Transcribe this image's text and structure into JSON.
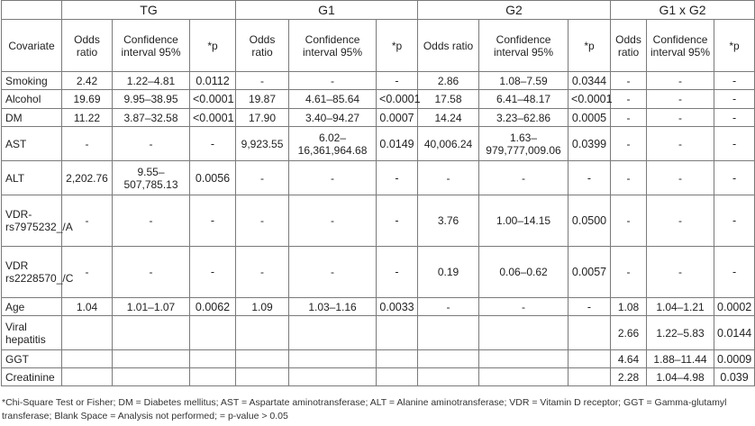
{
  "header": {
    "groups": [
      "TG",
      "G1",
      "G2",
      "G1 x G2"
    ],
    "covariate": "Covariate",
    "odds": "Odds ratio",
    "ci": "Confidence interval 95%",
    "p": "*p"
  },
  "rows": [
    {
      "name": "Smoking",
      "h": 20,
      "cells": [
        "2.42",
        "1.22–4.81",
        "0.0112",
        "-",
        "-",
        "-",
        "2.86",
        "1.08–7.59",
        "0.0344",
        "-",
        "-",
        "-"
      ]
    },
    {
      "name": "Alcohol",
      "h": 21,
      "cells": [
        "19.69",
        "9.95–38.95",
        "<0.0001",
        "19.87",
        "4.61–85.64",
        "<0.0001",
        "17.58",
        "6.41–48.17",
        "<0.0001",
        "-",
        "-",
        "-"
      ]
    },
    {
      "name": "DM",
      "h": 20,
      "cells": [
        "11.22",
        "3.87–32.58",
        "<0.0001",
        "17.90",
        "3.40–94.27",
        "0.0007",
        "14.24",
        "3.23–62.86",
        "0.0005",
        "-",
        "-",
        "-"
      ]
    },
    {
      "name": "AST",
      "h": 38,
      "cells": [
        "-",
        "-",
        "-",
        "9,923.55",
        "6.02–16,361,964.68",
        "0.0149",
        "40,006.24",
        "1.63–979,777,009.06",
        "0.0399",
        "-",
        "-",
        "-"
      ]
    },
    {
      "name": "ALT",
      "h": 38,
      "cells": [
        "2,202.76",
        "9.55–507,785.13",
        "0.0056",
        "-",
        "-",
        "-",
        "-",
        "-",
        "-",
        "-",
        "-",
        "-"
      ]
    },
    {
      "name": "VDR-rs7975232_/A",
      "h": 57,
      "cells": [
        "-",
        "-",
        "-",
        "-",
        "-",
        "-",
        "3.76",
        "1.00–14.15",
        "0.0500",
        "-",
        "-",
        "-"
      ]
    },
    {
      "name": "VDR rs2228570_/C",
      "h": 57,
      "cells": [
        "-",
        "-",
        "-",
        "-",
        "-",
        "-",
        "0.19",
        "0.06–0.62",
        "0.0057",
        "-",
        "-",
        "-"
      ]
    },
    {
      "name": "Age",
      "h": 20,
      "cells": [
        "1.04",
        "1.01–1.07",
        "0.0062",
        "1.09",
        "1.03–1.16",
        "0.0033",
        "-",
        "-",
        "-",
        "1.08",
        "1.04–1.21",
        "0.0002"
      ]
    },
    {
      "name": "Viral hepatitis",
      "h": 38,
      "cells": [
        "",
        "",
        "",
        "",
        "",
        "",
        "",
        "",
        "",
        "2.66",
        "1.22–5.83",
        "0.0144"
      ]
    },
    {
      "name": "GGT",
      "h": 20,
      "cells": [
        "",
        "",
        "",
        "",
        "",
        "",
        "",
        "",
        "",
        "4.64",
        "1.88–11.44",
        "0.0009"
      ]
    },
    {
      "name": "Creatinine",
      "h": 20,
      "cells": [
        "",
        "",
        "",
        "",
        "",
        "",
        "",
        "",
        "",
        "2.28",
        "1.04–4.98",
        "0.039"
      ]
    }
  ],
  "footnote": "*Chi-Square Test or Fisher; DM = Diabetes mellitus; AST = Aspartate aminotransferase; ALT = Alanine aminotransferase; VDR = Vitamin D receptor; GGT = Gamma-glutamyl transferase; Blank Space = Analysis not performed; = p-value > 0.05"
}
